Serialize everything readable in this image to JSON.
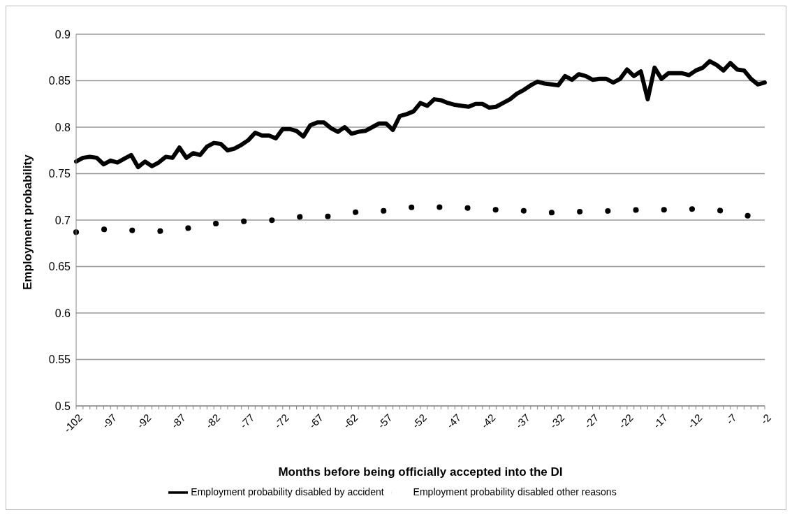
{
  "chart_data": {
    "type": "line",
    "xlabel": "Months before being officially accepted into the DI",
    "ylabel": "Employment probability",
    "categories": [
      "-102",
      null,
      null,
      null,
      null,
      "-97",
      null,
      null,
      null,
      null,
      "-92",
      null,
      null,
      null,
      null,
      "-87",
      null,
      null,
      null,
      null,
      "-82",
      null,
      null,
      null,
      null,
      "-77",
      null,
      null,
      null,
      null,
      "-72",
      null,
      null,
      null,
      null,
      "-67",
      null,
      null,
      null,
      null,
      "-62",
      null,
      null,
      null,
      null,
      "-57",
      null,
      null,
      null,
      null,
      "-52",
      null,
      null,
      null,
      null,
      "-47",
      null,
      null,
      null,
      null,
      "-42",
      null,
      null,
      null,
      null,
      "-37",
      null,
      null,
      null,
      null,
      "-32",
      null,
      null,
      null,
      null,
      "-27",
      null,
      null,
      null,
      null,
      "-22",
      null,
      null,
      null,
      null,
      "-17",
      null,
      null,
      null,
      null,
      "-12",
      null,
      null,
      null,
      null,
      "-7",
      null,
      null,
      null,
      null,
      "-2"
    ],
    "series": [
      {
        "name": "Employment probability disabled by accident",
        "color": "#000000",
        "line_style": "solid",
        "values": [
          0.763,
          0.767,
          0.768,
          0.767,
          0.76,
          0.764,
          0.762,
          0.766,
          0.77,
          0.757,
          0.763,
          0.758,
          0.762,
          0.768,
          0.767,
          0.778,
          0.767,
          0.772,
          0.77,
          0.779,
          0.783,
          0.782,
          0.775,
          0.777,
          0.781,
          0.786,
          0.794,
          0.791,
          0.791,
          0.788,
          0.798,
          0.798,
          0.796,
          0.79,
          0.802,
          0.805,
          0.805,
          0.799,
          0.795,
          0.8,
          0.793,
          0.795,
          0.796,
          0.8,
          0.804,
          0.804,
          0.797,
          0.812,
          0.814,
          0.817,
          0.826,
          0.823,
          0.83,
          0.829,
          0.826,
          0.824,
          0.823,
          0.822,
          0.825,
          0.825,
          0.821,
          0.822,
          0.826,
          0.83,
          0.836,
          0.84,
          0.845,
          0.849,
          0.847,
          0.846,
          0.845,
          0.855,
          0.851,
          0.857,
          0.855,
          0.851,
          0.852,
          0.852,
          0.848,
          0.852,
          0.862,
          0.855,
          0.86,
          0.83,
          0.864,
          0.852,
          0.858,
          0.858,
          0.858,
          0.856,
          0.861,
          0.864,
          0.871,
          0.867,
          0.861,
          0.869,
          0.862,
          0.861,
          0.852,
          0.846,
          0.848
        ]
      },
      {
        "name": "Employment probability disabled other reasons",
        "color": "#000000",
        "line_style": "dotted",
        "values": [
          0.687,
          null,
          null,
          null,
          0.69,
          null,
          null,
          null,
          0.689,
          null,
          null,
          null,
          0.688,
          null,
          null,
          null,
          0.691,
          null,
          null,
          null,
          0.696,
          null,
          null,
          null,
          null,
          0.699,
          null,
          null,
          null,
          0.7,
          null,
          null,
          null,
          0.704,
          null,
          null,
          null,
          0.704,
          null,
          null,
          null,
          0.709,
          null,
          null,
          null,
          0.71,
          null,
          null,
          null,
          0.714,
          null,
          null,
          null,
          0.714,
          null,
          null,
          null,
          0.713,
          null,
          null,
          null,
          0.711,
          null,
          null,
          null,
          0.71,
          null,
          null,
          null,
          0.708,
          null,
          null,
          null,
          0.709,
          null,
          null,
          null,
          null,
          0.71,
          null,
          null,
          null,
          0.711,
          null,
          null,
          null,
          0.711,
          null,
          null,
          null,
          0.712,
          null,
          null,
          null,
          0.71,
          null,
          null,
          null,
          0.704,
          null,
          null
        ]
      }
    ],
    "ylim": [
      0.5,
      0.9
    ],
    "yticks": [
      0.5,
      0.55,
      0.6,
      0.65,
      0.7,
      0.75,
      0.8,
      0.85,
      0.9
    ],
    "grid": "y",
    "legend": "bottom",
    "marker": "none"
  }
}
